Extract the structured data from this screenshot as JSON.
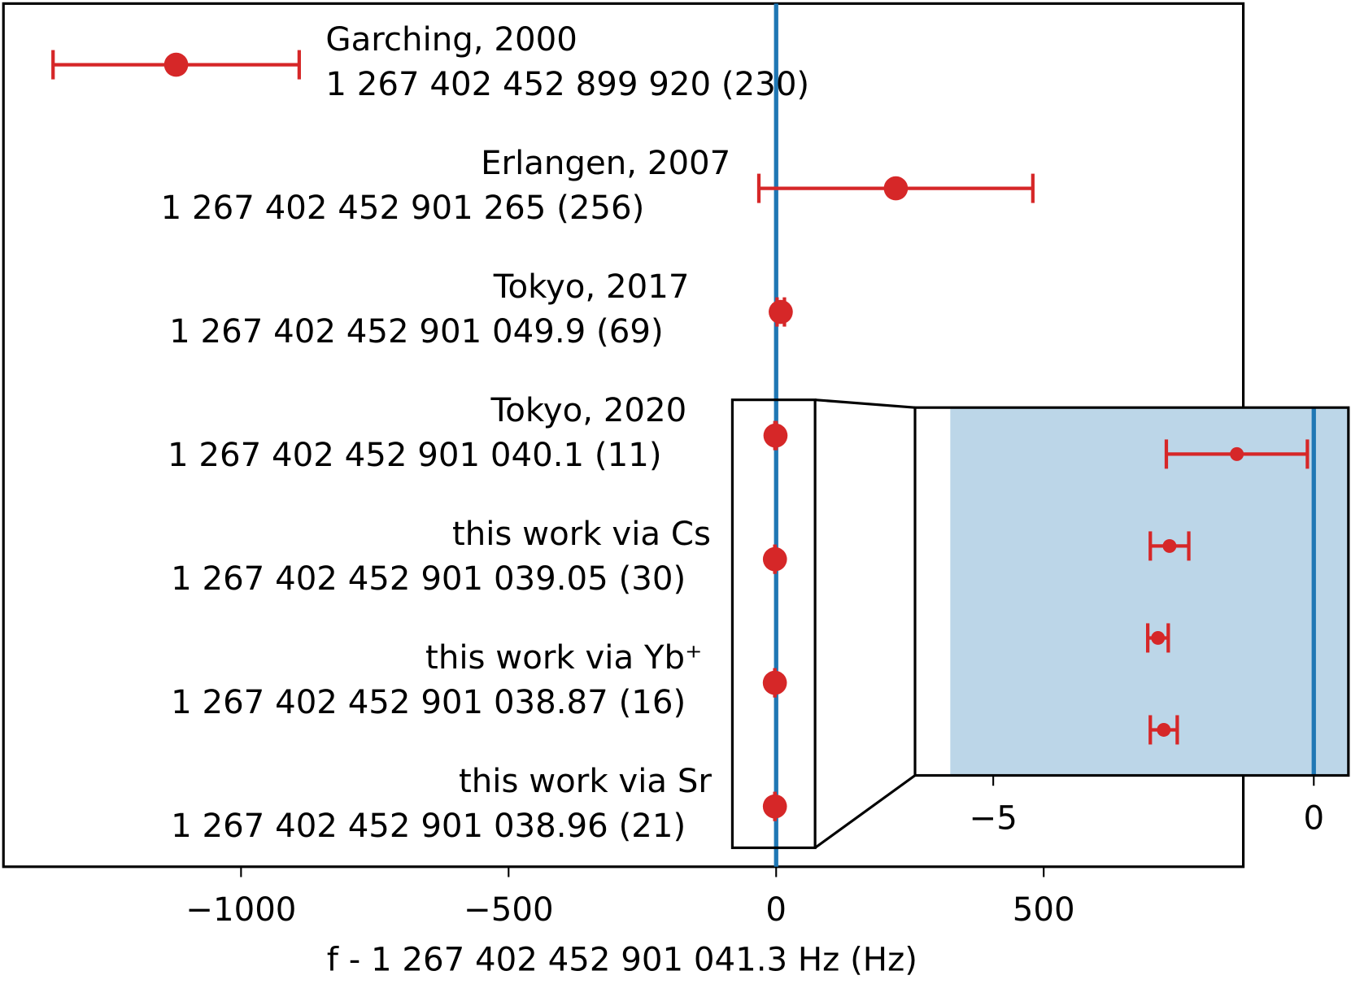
{
  "chart_data": {
    "type": "errorbar",
    "xlabel": "f - 1 267 402 452 901 041.3 Hz (Hz)",
    "categories": [
      "Garching, 2000",
      "Erlangen, 2007",
      "Tokyo, 2017",
      "Tokyo, 2020",
      "this work via Cs",
      "this work via Yb⁺",
      "this work via Sr"
    ],
    "annotations": [
      "1 267 402 452 899 920 (230)",
      "1 267 402 452 901 265 (256)",
      "1 267 402 452 901 049.9 (69)",
      "1 267 402 452 901 040.1 (11)",
      "1 267 402 452 901 039.05 (30)",
      "1 267 402 452 901 038.87 (16)",
      "1 267 402 452 901 038.96 (21)"
    ],
    "values": [
      -1121.3,
      223.7,
      8.6,
      -1.2,
      -2.25,
      -2.43,
      -2.34
    ],
    "errors": [
      230,
      256,
      6.9,
      1.1,
      0.3,
      0.16,
      0.21
    ],
    "color": "#d62728",
    "reference_line": 0,
    "reference_color": "#1f77b4",
    "xlim": [
      -1444,
      873
    ],
    "xticks": [
      {
        "value": -1000,
        "label": "−1000"
      },
      {
        "value": -500,
        "label": "−500"
      },
      0,
      500
    ],
    "inset": {
      "xlim": [
        -6.22,
        0.54
      ],
      "xticks": [
        {
          "value": -5,
          "label": "−5"
        },
        0
      ],
      "band": [
        -5.67,
        0.54
      ],
      "band_color": "#bcd6e8",
      "from_index": 3
    }
  }
}
